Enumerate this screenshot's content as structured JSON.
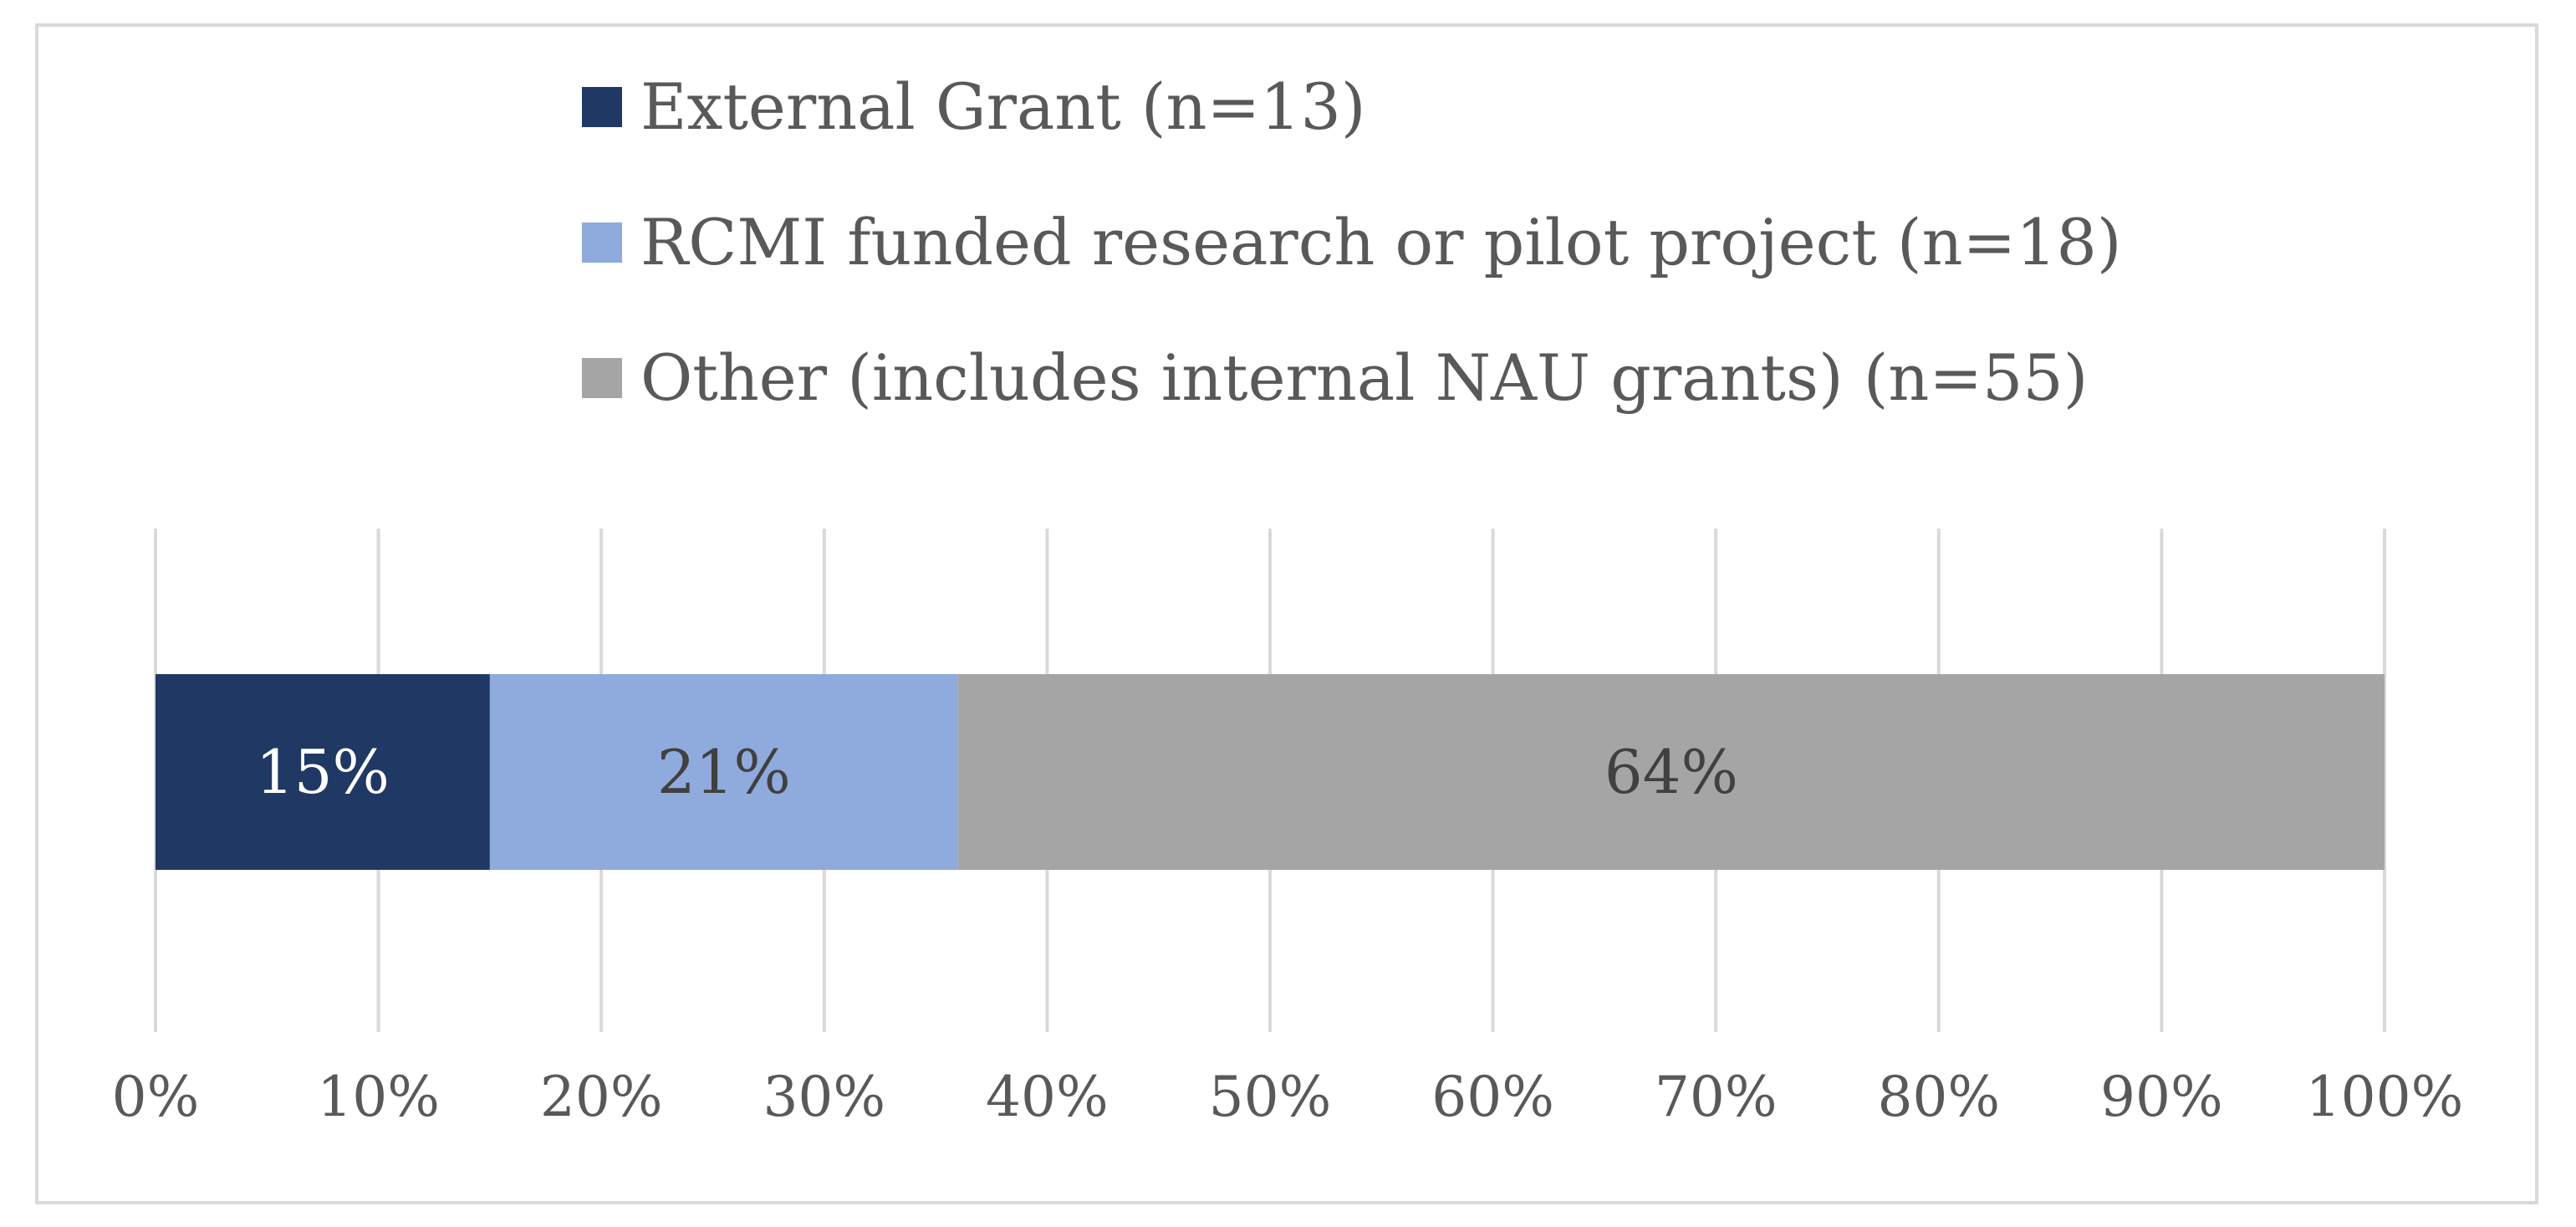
{
  "chart_data": {
    "type": "bar",
    "orientation": "horizontal",
    "stacked": true,
    "percent": true,
    "categories": [
      ""
    ],
    "series": [
      {
        "name": "External Grant (n=13)",
        "values": [
          15
        ],
        "label": "15%",
        "color": "#203864",
        "label_color": "#ffffff"
      },
      {
        "name": "RCMI funded research or pilot project (n=18)",
        "values": [
          21
        ],
        "label": "21%",
        "color": "#8faadc",
        "label_color": "#404040"
      },
      {
        "name": "Other (includes internal NAU grants) (n=55)",
        "values": [
          64
        ],
        "label": "64%",
        "color": "#a5a5a5",
        "label_color": "#404040"
      }
    ],
    "x_ticks": [
      "0%",
      "10%",
      "20%",
      "30%",
      "40%",
      "50%",
      "60%",
      "70%",
      "80%",
      "90%",
      "100%"
    ],
    "xlim": [
      0,
      100
    ],
    "grid": "vertical",
    "legend_position": "top",
    "colors": {
      "grid": "#d9d9d9",
      "border": "#d9d9d9",
      "text": "#595959"
    }
  }
}
